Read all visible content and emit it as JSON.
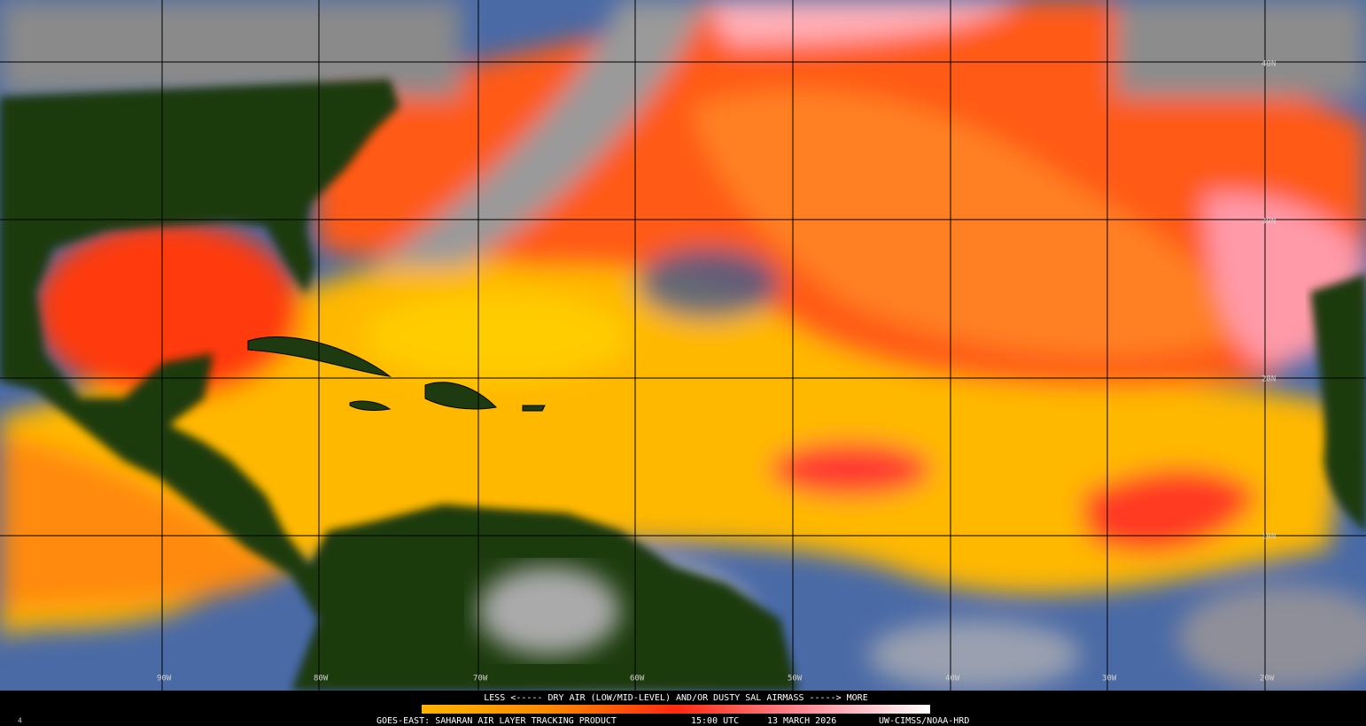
{
  "map": {
    "latitude_labels": [
      "40N",
      "30N",
      "20N",
      "10N"
    ],
    "longitude_labels": [
      "90W",
      "80W",
      "70W",
      "60W",
      "50W",
      "40W",
      "30W",
      "20W"
    ],
    "legend": {
      "scale_text": "LESS <----- DRY AIR (LOW/MID-LEVEL) AND/OR DUSTY SAL AIRMASS -----> MORE"
    },
    "footer": {
      "frame": "4",
      "product": "GOES-EAST: SAHARAN AIR LAYER TRACKING PRODUCT",
      "time": "15:00 UTC",
      "date": "13 MARCH 2026",
      "credit": "UW-CIMSS/NOAA-HRD"
    }
  }
}
